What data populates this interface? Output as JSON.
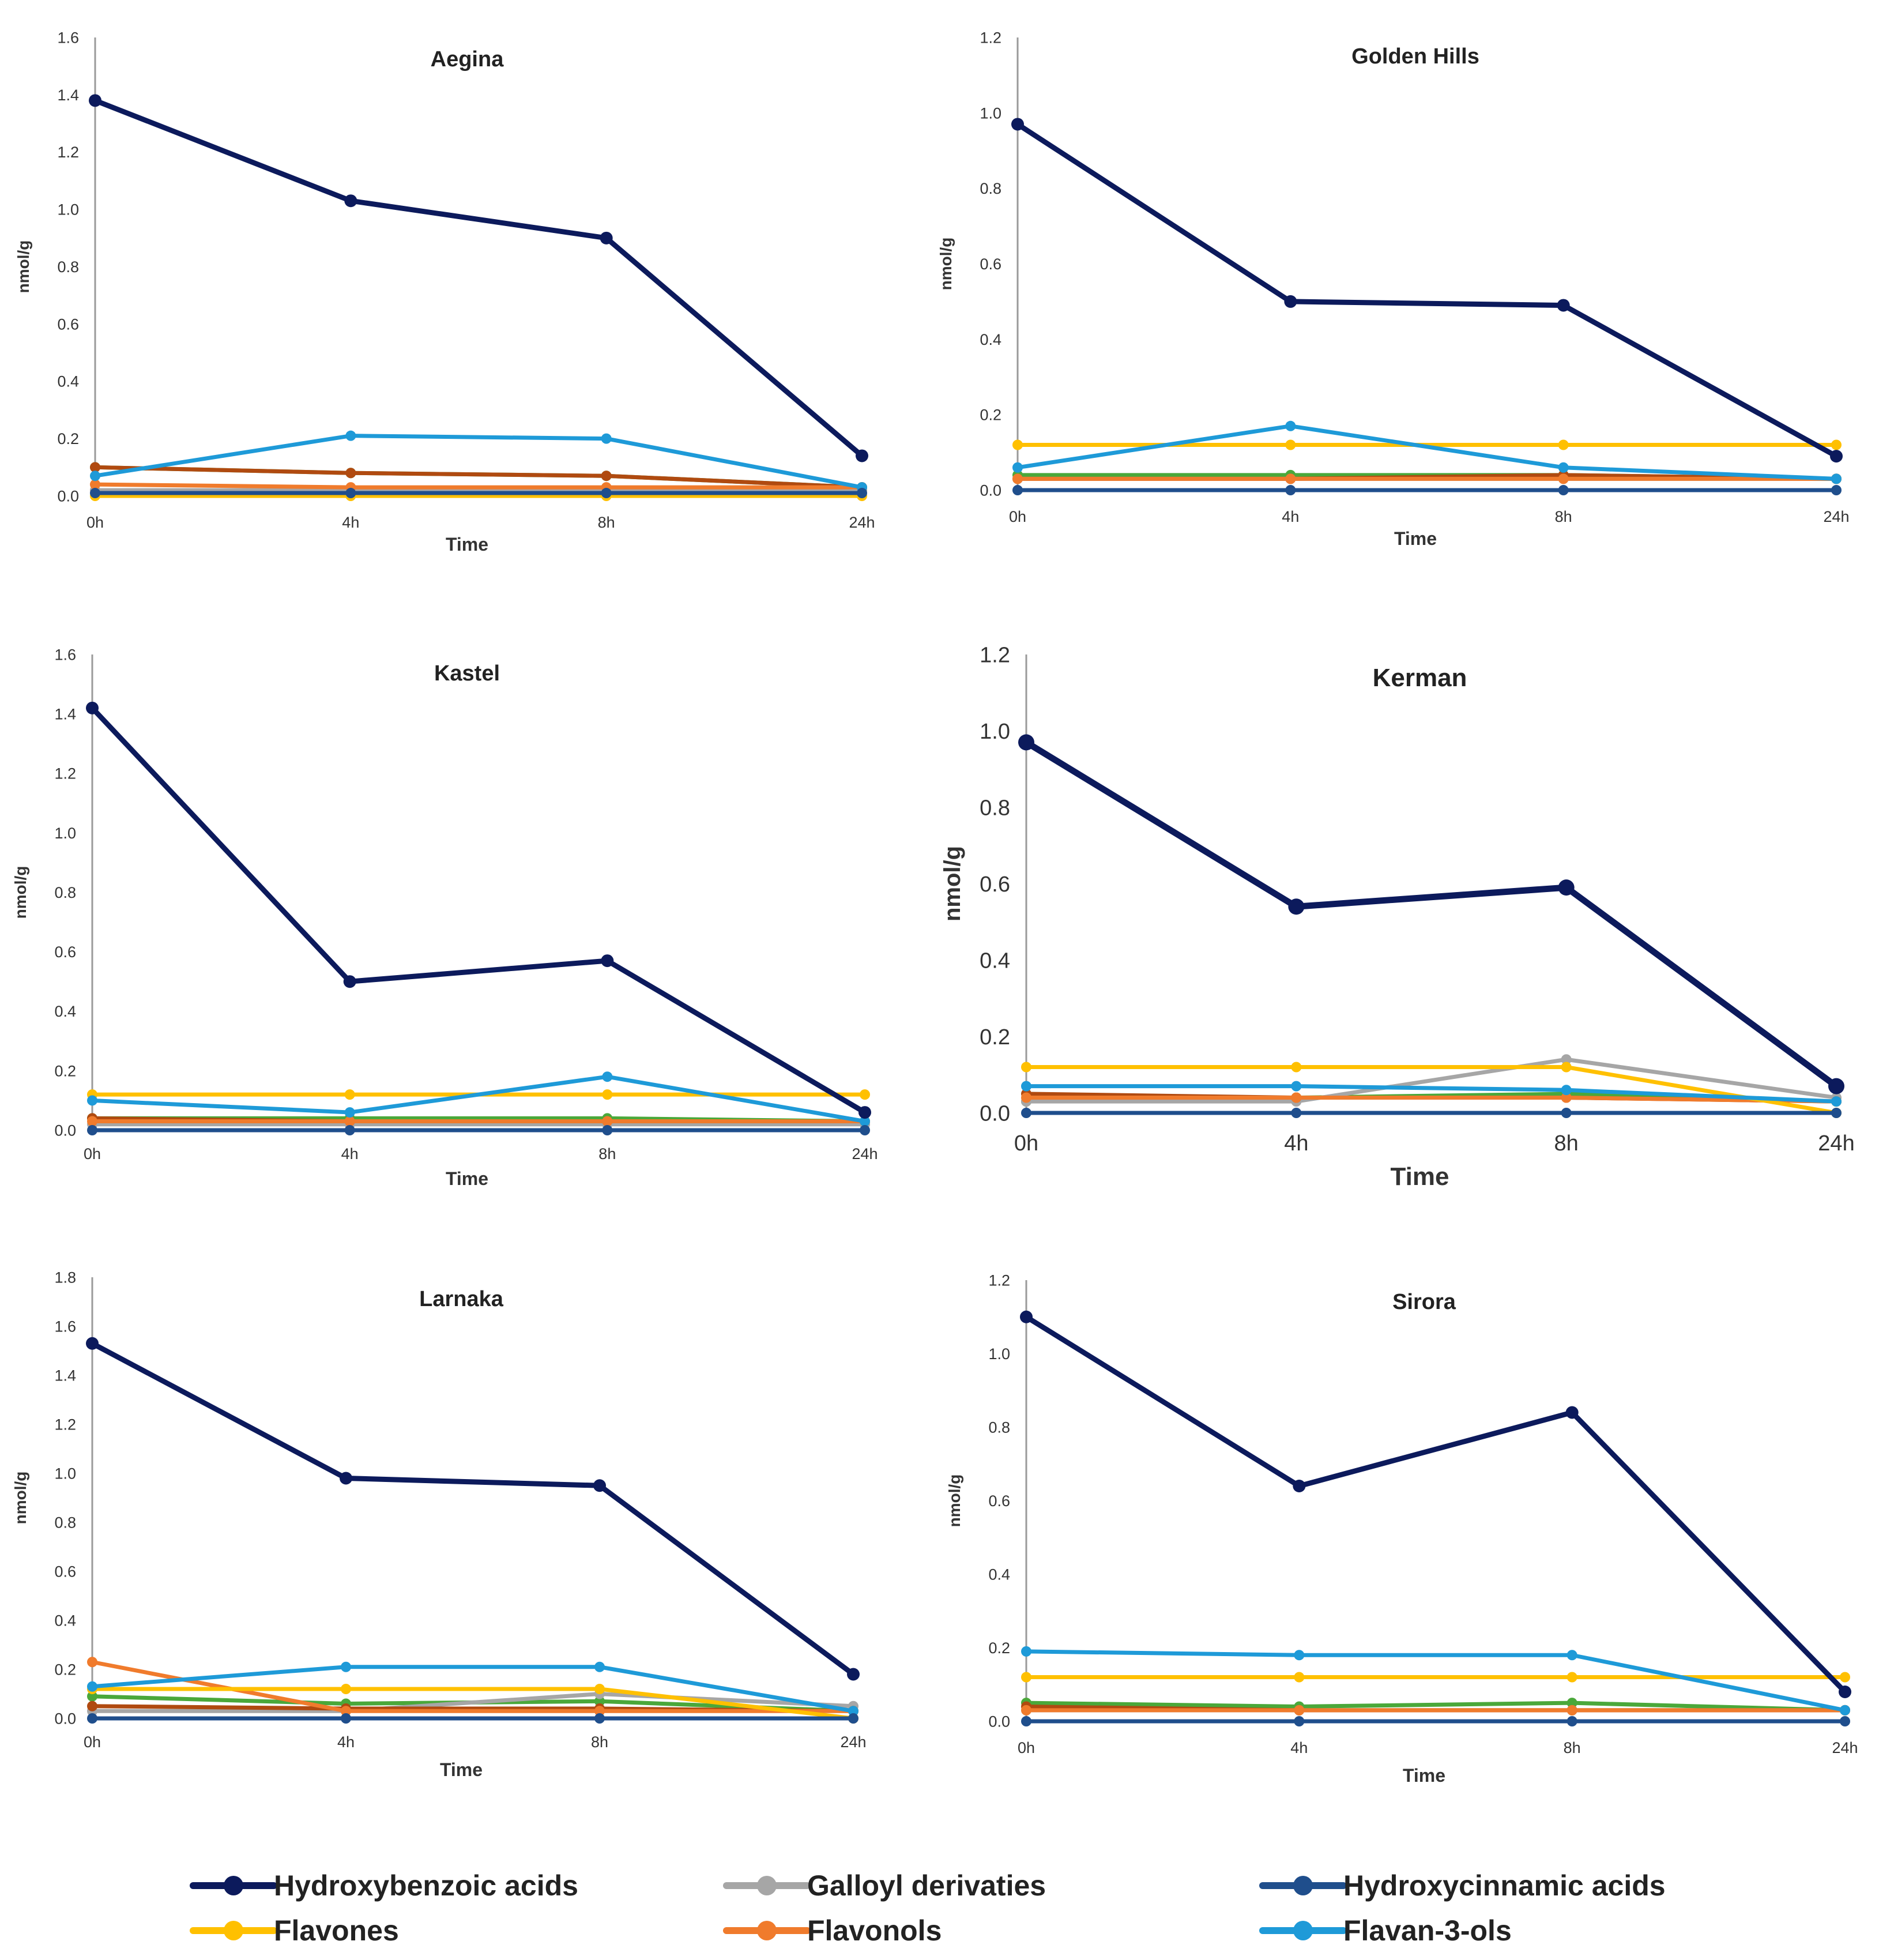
{
  "colors": {
    "hydroxybenzoic": "#0c1a5c",
    "galloyl": "#a6a6a6",
    "hydroxycinnamic": "#1f4e8c",
    "flavones": "#ffc000",
    "flavonols": "#f07b2c",
    "flavan3ols": "#1e9ad8",
    "green": "#4aa83a",
    "brown": "#b04a10"
  },
  "legend": [
    {
      "key": "hydroxybenzoic",
      "label": "Hydroxybenzoic acids"
    },
    {
      "key": "galloyl",
      "label": "Galloyl derivaties"
    },
    {
      "key": "hydroxycinnamic",
      "label": "Hydroxycinnamic acids"
    },
    {
      "key": "flavones",
      "label": "Flavones"
    },
    {
      "key": "flavonols",
      "label": "Flavonols"
    },
    {
      "key": "flavan3ols",
      "label": "Flavan-3-ols"
    }
  ],
  "chart_data": [
    {
      "type": "line",
      "title": "Aegina",
      "xlabel": "Time",
      "ylabel": "nmol/g",
      "categories": [
        "0h",
        "4h",
        "8h",
        "24h"
      ],
      "ylim": [
        0,
        1.6
      ],
      "yticks": [
        "0.0",
        "0.2",
        "0.4",
        "0.6",
        "0.8",
        "1.0",
        "1.2",
        "1.4",
        "1.6"
      ],
      "series": [
        {
          "key": "hydroxybenzoic",
          "values": [
            1.38,
            1.03,
            0.9,
            0.14
          ]
        },
        {
          "key": "galloyl",
          "values": [
            0.02,
            0.02,
            0.02,
            0.02
          ]
        },
        {
          "key": "hydroxycinnamic",
          "values": [
            0.01,
            0.01,
            0.01,
            0.01
          ]
        },
        {
          "key": "flavones",
          "values": [
            0.0,
            0.0,
            0.0,
            0.0
          ]
        },
        {
          "key": "flavonols",
          "values": [
            0.04,
            0.03,
            0.03,
            0.03
          ]
        },
        {
          "key": "flavan3ols",
          "values": [
            0.07,
            0.21,
            0.2,
            0.03
          ]
        },
        {
          "key": "green",
          "values": [
            0.1,
            0.08,
            0.07,
            0.03
          ]
        },
        {
          "key": "brown",
          "values": [
            0.1,
            0.08,
            0.07,
            0.03
          ]
        }
      ]
    },
    {
      "type": "line",
      "title": "Golden Hills",
      "xlabel": "Time",
      "ylabel": "nmol/g",
      "categories": [
        "0h",
        "4h",
        "8h",
        "24h"
      ],
      "ylim": [
        0,
        1.2
      ],
      "yticks": [
        "0.0",
        "0.2",
        "0.4",
        "0.6",
        "0.8",
        "1.0",
        "1.2"
      ],
      "series": [
        {
          "key": "hydroxybenzoic",
          "values": [
            0.97,
            0.5,
            0.49,
            0.09
          ]
        },
        {
          "key": "galloyl",
          "values": [
            0.03,
            0.03,
            0.03,
            0.03
          ]
        },
        {
          "key": "hydroxycinnamic",
          "values": [
            0.0,
            0.0,
            0.0,
            0.0
          ]
        },
        {
          "key": "flavones",
          "values": [
            0.12,
            0.12,
            0.12,
            0.12
          ]
        },
        {
          "key": "flavonols",
          "values": [
            0.03,
            0.03,
            0.03,
            0.03
          ]
        },
        {
          "key": "flavan3ols",
          "values": [
            0.06,
            0.17,
            0.06,
            0.03
          ]
        },
        {
          "key": "green",
          "values": [
            0.04,
            0.04,
            0.04,
            0.03
          ]
        },
        {
          "key": "brown",
          "values": [
            0.03,
            0.03,
            0.04,
            0.03
          ]
        }
      ]
    },
    {
      "type": "line",
      "title": "Kastel",
      "xlabel": "Time",
      "ylabel": "nmol/g",
      "categories": [
        "0h",
        "4h",
        "8h",
        "24h"
      ],
      "ylim": [
        0,
        1.6
      ],
      "yticks": [
        "0.0",
        "0.2",
        "0.4",
        "0.6",
        "0.8",
        "1.0",
        "1.2",
        "1.4",
        "1.6"
      ],
      "series": [
        {
          "key": "hydroxybenzoic",
          "values": [
            1.42,
            0.5,
            0.57,
            0.06
          ]
        },
        {
          "key": "galloyl",
          "values": [
            0.02,
            0.02,
            0.02,
            0.02
          ]
        },
        {
          "key": "hydroxycinnamic",
          "values": [
            0.0,
            0.0,
            0.0,
            0.0
          ]
        },
        {
          "key": "flavones",
          "values": [
            0.12,
            0.12,
            0.12,
            0.12
          ]
        },
        {
          "key": "flavonols",
          "values": [
            0.03,
            0.03,
            0.03,
            0.03
          ]
        },
        {
          "key": "flavan3ols",
          "values": [
            0.1,
            0.06,
            0.18,
            0.03
          ]
        },
        {
          "key": "green",
          "values": [
            0.04,
            0.04,
            0.04,
            0.03
          ]
        },
        {
          "key": "brown",
          "values": [
            0.04,
            0.03,
            0.03,
            0.03
          ]
        }
      ]
    },
    {
      "type": "line",
      "title": "Kerman",
      "xlabel": "Time",
      "ylabel": "nmol/g",
      "categories": [
        "0h",
        "4h",
        "8h",
        "24h"
      ],
      "ylim": [
        0,
        1.2
      ],
      "yticks": [
        "0.0",
        "0.2",
        "0.4",
        "0.6",
        "0.8",
        "1.0",
        "1.2"
      ],
      "series": [
        {
          "key": "hydroxybenzoic",
          "values": [
            0.97,
            0.54,
            0.59,
            0.07
          ]
        },
        {
          "key": "galloyl",
          "values": [
            0.03,
            0.03,
            0.14,
            0.04
          ]
        },
        {
          "key": "hydroxycinnamic",
          "values": [
            0.0,
            0.0,
            0.0,
            0.0
          ]
        },
        {
          "key": "flavones",
          "values": [
            0.12,
            0.12,
            0.12,
            0.0
          ]
        },
        {
          "key": "flavonols",
          "values": [
            0.04,
            0.04,
            0.04,
            0.03
          ]
        },
        {
          "key": "flavan3ols",
          "values": [
            0.07,
            0.07,
            0.06,
            0.03
          ]
        },
        {
          "key": "green",
          "values": [
            0.03,
            0.04,
            0.05,
            0.03
          ]
        },
        {
          "key": "brown",
          "values": [
            0.05,
            0.04,
            0.04,
            0.03
          ]
        }
      ]
    },
    {
      "type": "line",
      "title": "Larnaka",
      "xlabel": "Time",
      "ylabel": "nmol/g",
      "categories": [
        "0h",
        "4h",
        "8h",
        "24h"
      ],
      "ylim": [
        0,
        1.8
      ],
      "yticks": [
        "0.0",
        "0.2",
        "0.4",
        "0.6",
        "0.8",
        "1.0",
        "1.2",
        "1.4",
        "1.6",
        "1.8"
      ],
      "series": [
        {
          "key": "hydroxybenzoic",
          "values": [
            1.53,
            0.98,
            0.95,
            0.18
          ]
        },
        {
          "key": "galloyl",
          "values": [
            0.03,
            0.03,
            0.1,
            0.05
          ]
        },
        {
          "key": "hydroxycinnamic",
          "values": [
            0.0,
            0.0,
            0.0,
            0.0
          ]
        },
        {
          "key": "flavones",
          "values": [
            0.12,
            0.12,
            0.12,
            0.0
          ]
        },
        {
          "key": "flavonols",
          "values": [
            0.23,
            0.03,
            0.03,
            0.03
          ]
        },
        {
          "key": "flavan3ols",
          "values": [
            0.13,
            0.21,
            0.21,
            0.03
          ]
        },
        {
          "key": "green",
          "values": [
            0.09,
            0.06,
            0.07,
            0.03
          ]
        },
        {
          "key": "brown",
          "values": [
            0.05,
            0.04,
            0.04,
            0.03
          ]
        }
      ]
    },
    {
      "type": "line",
      "title": "Sirora",
      "xlabel": "Time",
      "ylabel": "nmol/g",
      "categories": [
        "0h",
        "4h",
        "8h",
        "24h"
      ],
      "ylim": [
        0,
        1.2
      ],
      "yticks": [
        "0.0",
        "0.2",
        "0.4",
        "0.6",
        "0.8",
        "1.0",
        "1.2"
      ],
      "series": [
        {
          "key": "hydroxybenzoic",
          "values": [
            1.1,
            0.64,
            0.84,
            0.08
          ]
        },
        {
          "key": "galloyl",
          "values": [
            0.03,
            0.03,
            0.03,
            0.03
          ]
        },
        {
          "key": "hydroxycinnamic",
          "values": [
            0.0,
            0.0,
            0.0,
            0.0
          ]
        },
        {
          "key": "flavones",
          "values": [
            0.12,
            0.12,
            0.12,
            0.12
          ]
        },
        {
          "key": "flavonols",
          "values": [
            0.03,
            0.03,
            0.03,
            0.03
          ]
        },
        {
          "key": "flavan3ols",
          "values": [
            0.19,
            0.18,
            0.18,
            0.03
          ]
        },
        {
          "key": "green",
          "values": [
            0.05,
            0.04,
            0.05,
            0.03
          ]
        },
        {
          "key": "brown",
          "values": [
            0.04,
            0.03,
            0.03,
            0.03
          ]
        }
      ]
    }
  ]
}
